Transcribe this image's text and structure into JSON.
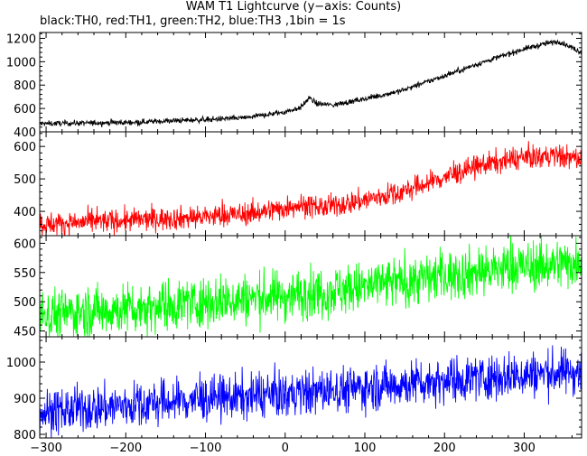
{
  "title": "WAM T1 Lightcurve (y−axis: Counts)",
  "subtitle": "black:TH0, red:TH1, green:TH2, blue:TH3 ,1bin = 1s",
  "chart_data": {
    "type": "line",
    "x_range": [
      -308,
      372
    ],
    "x_ticks": [
      -300,
      -200,
      -100,
      0,
      100,
      200,
      300
    ],
    "panels": [
      {
        "name": "TH0",
        "color": "#000000",
        "ylim": [
          400,
          1250
        ],
        "yticks": [
          400,
          600,
          800,
          1000,
          1200
        ],
        "baseline": [
          [
            -308,
            470
          ],
          [
            -200,
            480
          ],
          [
            -100,
            505
          ],
          [
            -50,
            520
          ],
          [
            0,
            570
          ],
          [
            20,
            610
          ],
          [
            30,
            690
          ],
          [
            40,
            640
          ],
          [
            60,
            630
          ],
          [
            100,
            680
          ],
          [
            150,
            760
          ],
          [
            200,
            880
          ],
          [
            250,
            1000
          ],
          [
            300,
            1110
          ],
          [
            330,
            1160
          ],
          [
            345,
            1170
          ],
          [
            372,
            1080
          ]
        ],
        "noise": 12
      },
      {
        "name": "TH1",
        "color": "#ff0000",
        "ylim": [
          325,
          645
        ],
        "yticks": [
          400,
          500,
          600
        ],
        "baseline": [
          [
            -308,
            360
          ],
          [
            -200,
            372
          ],
          [
            -100,
            383
          ],
          [
            -50,
            392
          ],
          [
            0,
            410
          ],
          [
            10,
            420
          ],
          [
            50,
            412
          ],
          [
            100,
            435
          ],
          [
            150,
            462
          ],
          [
            200,
            505
          ],
          [
            250,
            545
          ],
          [
            300,
            565
          ],
          [
            340,
            572
          ],
          [
            372,
            560
          ]
        ],
        "noise": 18
      },
      {
        "name": "TH2",
        "color": "#00ff00",
        "ylim": [
          440,
          613
        ],
        "yticks": [
          450,
          500,
          550,
          600
        ],
        "baseline": [
          [
            -308,
            478
          ],
          [
            -200,
            488
          ],
          [
            -100,
            500
          ],
          [
            0,
            510
          ],
          [
            100,
            525
          ],
          [
            200,
            545
          ],
          [
            300,
            560
          ],
          [
            372,
            568
          ]
        ],
        "noise": 22
      },
      {
        "name": "TH3",
        "color": "#0000ff",
        "ylim": [
          790,
          1070
        ],
        "yticks": [
          800,
          900,
          1000
        ],
        "baseline": [
          [
            -308,
            860
          ],
          [
            -200,
            880
          ],
          [
            -100,
            898
          ],
          [
            0,
            910
          ],
          [
            100,
            930
          ],
          [
            200,
            950
          ],
          [
            300,
            965
          ],
          [
            372,
            975
          ]
        ],
        "noise": 32
      }
    ]
  }
}
